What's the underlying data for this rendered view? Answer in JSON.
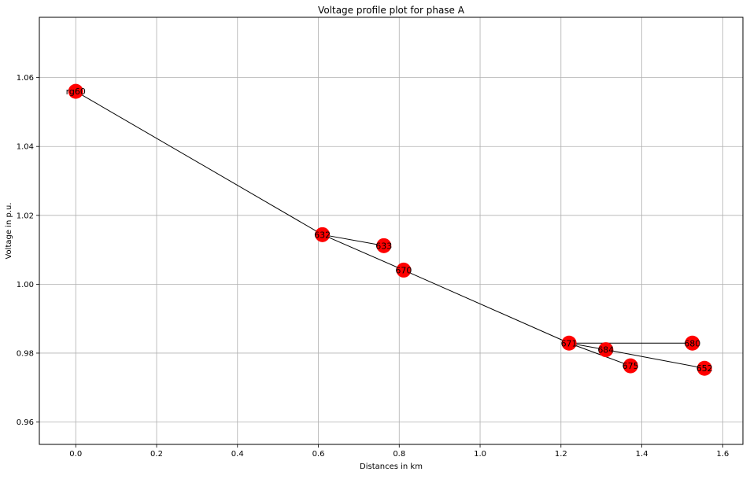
{
  "chart_data": {
    "type": "scatter",
    "title": "Voltage profile plot for phase A",
    "xlabel": "Distances in km",
    "ylabel": "Voltage in p.u.",
    "xlim": [
      -0.09,
      1.65
    ],
    "ylim": [
      0.9535,
      1.0775
    ],
    "xticks": [
      0.0,
      0.2,
      0.4,
      0.6,
      0.8,
      1.0,
      1.2,
      1.4,
      1.6
    ],
    "xtick_labels": [
      "0.0",
      "0.2",
      "0.4",
      "0.6",
      "0.8",
      "1.0",
      "1.2",
      "1.4",
      "1.6"
    ],
    "yticks": [
      0.96,
      0.98,
      1.0,
      1.02,
      1.04,
      1.06
    ],
    "ytick_labels": [
      "0.96",
      "0.98",
      "1.00",
      "1.02",
      "1.04",
      "1.06"
    ],
    "grid": true,
    "colors": {
      "node": "#ff0000",
      "edge": "#000000",
      "grid": "#b0b0b0"
    },
    "nodes": [
      {
        "name": "rg60",
        "x": 0.0,
        "y": 1.056
      },
      {
        "name": "632",
        "x": 0.61,
        "y": 1.0144
      },
      {
        "name": "633",
        "x": 0.762,
        "y": 1.0112
      },
      {
        "name": "670",
        "x": 0.811,
        "y": 1.0041
      },
      {
        "name": "671",
        "x": 1.22,
        "y": 0.9829
      },
      {
        "name": "684",
        "x": 1.311,
        "y": 0.981
      },
      {
        "name": "675",
        "x": 1.372,
        "y": 0.9763
      },
      {
        "name": "680",
        "x": 1.525,
        "y": 0.9829
      },
      {
        "name": "652",
        "x": 1.555,
        "y": 0.9756
      }
    ],
    "edges": [
      [
        "rg60",
        "632"
      ],
      [
        "632",
        "633"
      ],
      [
        "632",
        "670"
      ],
      [
        "670",
        "671"
      ],
      [
        "671",
        "680"
      ],
      [
        "671",
        "684"
      ],
      [
        "671",
        "675"
      ],
      [
        "684",
        "652"
      ]
    ]
  }
}
